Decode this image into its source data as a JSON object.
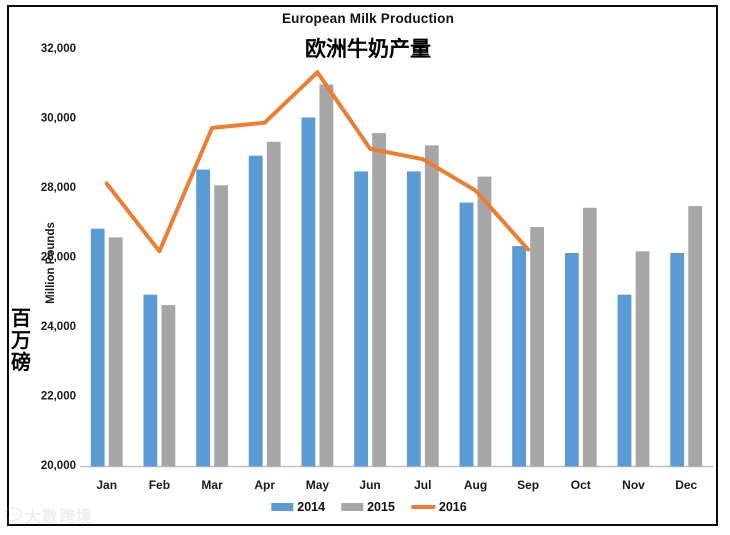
{
  "header": {
    "title": "European Milk Production",
    "subtitle_zh": "欧洲牛奶产量"
  },
  "y_axis": {
    "label_en": "Million Pounds",
    "label_zh": "百万磅"
  },
  "watermark": {
    "text": "大数跨境"
  },
  "colors": {
    "bar_2014": "#5B9BD5",
    "bar_2015": "#A6A6A6",
    "line_2016": "#ED7D31",
    "axis_line": "#BFBFBF"
  },
  "chart_data": {
    "type": "bar",
    "title": "European Milk Production",
    "subtitle": "欧洲牛奶产量",
    "xlabel": "",
    "ylabel": "Million Pounds",
    "ylabel_zh": "百万磅",
    "ylim": [
      20000,
      32000
    ],
    "ytick_step": 2000,
    "grid": false,
    "legend_position": "bottom",
    "categories": [
      "Jan",
      "Feb",
      "Mar",
      "Apr",
      "May",
      "Jun",
      "Jul",
      "Aug",
      "Sep",
      "Oct",
      "Nov",
      "Dec"
    ],
    "series": [
      {
        "name": "2014",
        "type": "bar",
        "color": "#5B9BD5",
        "values": [
          26800,
          24900,
          28500,
          28900,
          30000,
          28450,
          28450,
          27550,
          26300,
          26100,
          24900,
          26100
        ]
      },
      {
        "name": "2015",
        "type": "bar",
        "color": "#A6A6A6",
        "values": [
          26550,
          24600,
          28050,
          29300,
          30950,
          29550,
          29200,
          28300,
          26850,
          27400,
          26150,
          27450
        ]
      },
      {
        "name": "2016",
        "type": "line",
        "color": "#ED7D31",
        "values": [
          28100,
          26150,
          29700,
          29850,
          31300,
          29100,
          28800,
          27900,
          26200,
          null,
          null,
          null
        ]
      }
    ]
  }
}
